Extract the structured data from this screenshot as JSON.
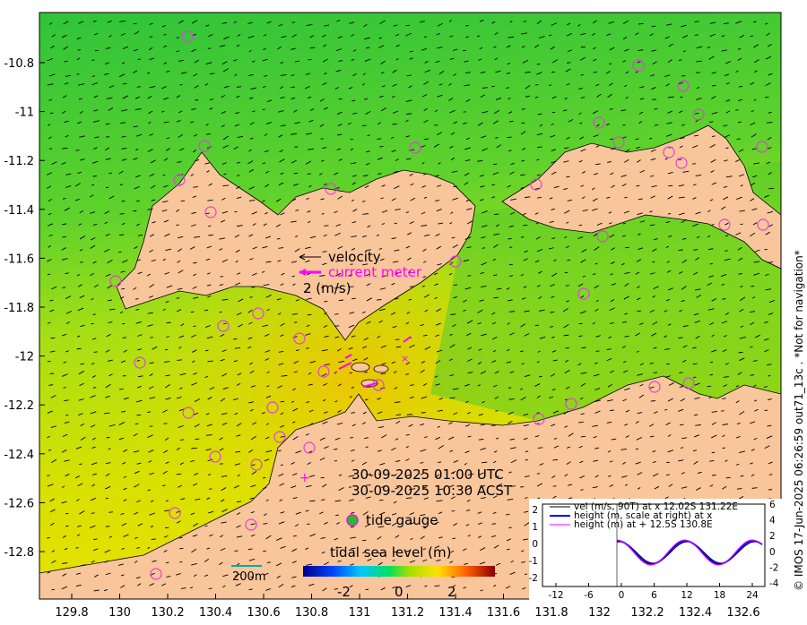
{
  "map": {
    "x_ticks": [
      "129.8",
      "130",
      "130.2",
      "130.4",
      "130.6",
      "130.8",
      "131",
      "131.2",
      "131.4",
      "131.6",
      "131.8",
      "132",
      "132.2",
      "132.4",
      "132.6"
    ],
    "y_ticks": [
      "-10.8",
      "-11",
      "-11.2",
      "-11.4",
      "-11.6",
      "-11.8",
      "-12",
      "-12.2",
      "-12.4",
      "-12.6",
      "-12.8"
    ],
    "legend": {
      "velocity": "velocity",
      "current_meter": "current meter",
      "scale": "2 (m/s)",
      "tide_gauge": "tide gauge"
    },
    "timestamps": {
      "utc": "30-09-2025 01:00 UTC",
      "acst": "30-09-2025 10:30 ACST"
    },
    "scale_bar": "200m",
    "colorbar": {
      "title": "tidal sea level (m)",
      "ticks": [
        "-2",
        "0",
        "2"
      ]
    },
    "credit": "© IMOS 17-Jun-2025 06:26:59 out71_13c . *Not for navigation*",
    "colors": {
      "land": "#f9c59b",
      "sea_north": "#3ec93e",
      "sea_mid": "#9bdf1c",
      "sea_south": "#e3e000",
      "current_meter": "#ff00ff",
      "tide_gauge_ring": "#e040e0"
    }
  },
  "inset": {
    "legend": [
      "vel (m/s, 90T) at x 12.02S 131.22E",
      "height (m, scale at right) at x",
      "height (m) at + 12.5S 130.8E"
    ],
    "x_ticks": [
      "-12",
      "-6",
      "0",
      "6",
      "12",
      "18",
      "24"
    ],
    "y_left_ticks": [
      "2",
      "1",
      "0",
      "-1",
      "-2"
    ],
    "y_right_ticks": [
      "6",
      "4",
      "2",
      "0",
      "-2",
      "-4"
    ],
    "series_colors": [
      "#000000",
      "#0000ff",
      "#ff00ff"
    ]
  }
}
